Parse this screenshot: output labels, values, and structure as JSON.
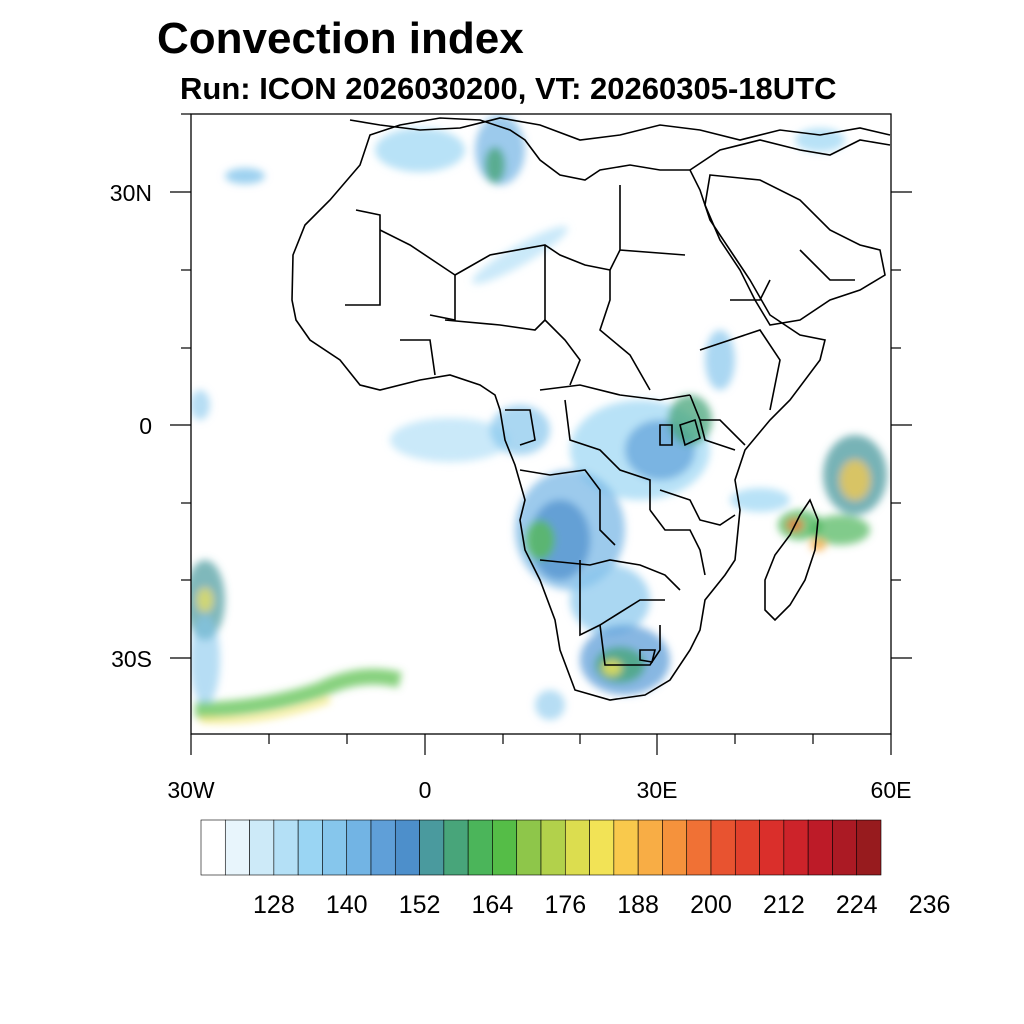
{
  "title": "Convection index",
  "subtitle": "Run: ICON 2026030200,  VT: 20260305-18UTC",
  "axes": {
    "x_ticks": [
      "30W",
      "0",
      "30E",
      "60E"
    ],
    "y_ticks": [
      "30N",
      "0",
      "30S"
    ]
  },
  "colorbar": {
    "colors": [
      "#ffffff",
      "#e8f5fc",
      "#cdeaf8",
      "#b4e0f6",
      "#9ad5f3",
      "#86c6ec",
      "#72b4e4",
      "#5f9fd8",
      "#4d8fcb",
      "#4a9a9e",
      "#48a57a",
      "#4bb55a",
      "#55bd47",
      "#8ec64a",
      "#b2d14b",
      "#dcdd4f",
      "#f2e356",
      "#f9c94c",
      "#f8ad45",
      "#f5923c",
      "#f07135",
      "#e85330",
      "#e1402c",
      "#da2f2b",
      "#cd232a",
      "#bd1b28",
      "#ab1a24",
      "#971b1e"
    ],
    "labels": [
      "128",
      "140",
      "152",
      "164",
      "176",
      "188",
      "200",
      "212",
      "224",
      "236"
    ]
  }
}
